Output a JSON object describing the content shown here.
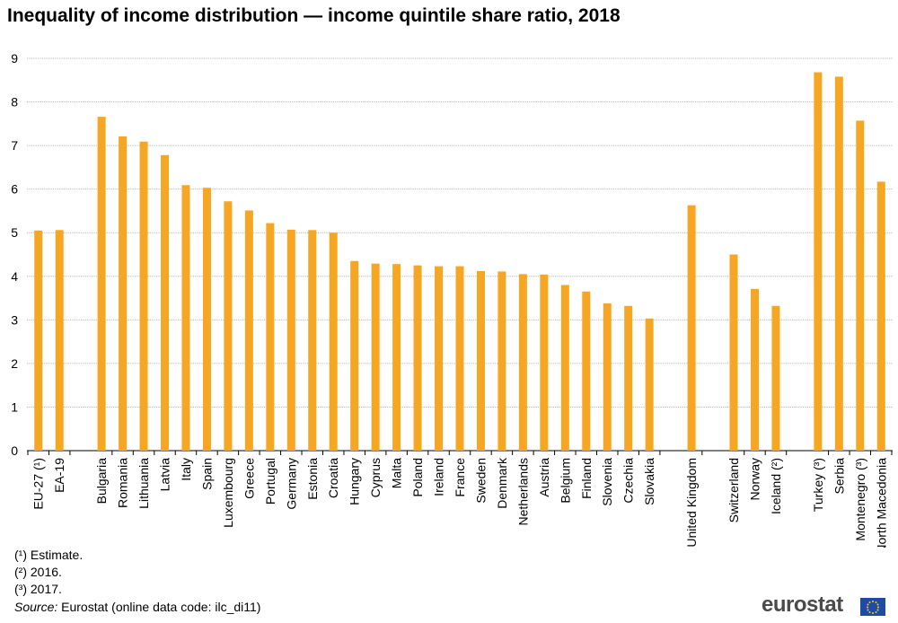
{
  "title": "Inequality of income distribution — income quintile share ratio, 2018",
  "chart_data": {
    "type": "bar",
    "title": "Inequality of income distribution — income quintile share ratio, 2018",
    "xlabel": "",
    "ylabel": "",
    "ylim": [
      0,
      9
    ],
    "yticks": [
      "0",
      "1",
      "2",
      "3",
      "4",
      "5",
      "6",
      "7",
      "8",
      "9"
    ],
    "grid": true,
    "bar_color": "#f5a623",
    "groups": [
      [
        {
          "label": "EU-27 (¹)",
          "value": 5.05
        },
        {
          "label": "EA-19",
          "value": 5.06
        }
      ],
      [
        {
          "label": "Bulgaria",
          "value": 7.66
        },
        {
          "label": "Romania",
          "value": 7.21
        },
        {
          "label": "Lithuania",
          "value": 7.09
        },
        {
          "label": "Latvia",
          "value": 6.78
        },
        {
          "label": "Italy",
          "value": 6.09
        },
        {
          "label": "Spain",
          "value": 6.03
        },
        {
          "label": "Luxembourg",
          "value": 5.72
        },
        {
          "label": "Greece",
          "value": 5.51
        },
        {
          "label": "Portugal",
          "value": 5.22
        },
        {
          "label": "Germany",
          "value": 5.07
        },
        {
          "label": "Estonia",
          "value": 5.06
        },
        {
          "label": "Croatia",
          "value": 5.0
        },
        {
          "label": "Hungary",
          "value": 4.35
        },
        {
          "label": "Cyprus",
          "value": 4.29
        },
        {
          "label": "Malta",
          "value": 4.28
        },
        {
          "label": "Poland",
          "value": 4.25
        },
        {
          "label": "Ireland",
          "value": 4.23
        },
        {
          "label": "France",
          "value": 4.23
        },
        {
          "label": "Sweden",
          "value": 4.12
        },
        {
          "label": "Denmark",
          "value": 4.11
        },
        {
          "label": "Netherlands",
          "value": 4.05
        },
        {
          "label": "Austria",
          "value": 4.04
        },
        {
          "label": "Belgium",
          "value": 3.8
        },
        {
          "label": "Finland",
          "value": 3.65
        },
        {
          "label": "Slovenia",
          "value": 3.38
        },
        {
          "label": "Czechia",
          "value": 3.32
        },
        {
          "label": "Slovakia",
          "value": 3.03
        }
      ],
      [
        {
          "label": "United Kingdom",
          "value": 5.63
        }
      ],
      [
        {
          "label": "Switzerland",
          "value": 4.5
        },
        {
          "label": "Norway",
          "value": 3.71
        },
        {
          "label": "Iceland (²)",
          "value": 3.32
        }
      ],
      [
        {
          "label": "Turkey (³)",
          "value": 8.68
        },
        {
          "label": "Serbia",
          "value": 8.58
        },
        {
          "label": "Montenegro (³)",
          "value": 7.57
        },
        {
          "label": "North Macedonia",
          "value": 6.17
        }
      ]
    ]
  },
  "notes": [
    "(¹) Estimate.",
    "(²) 2016.",
    "(³) 2017."
  ],
  "source": {
    "label": "Source:",
    "text": " Eurostat (online data code: ilc_di11)"
  },
  "logo": {
    "text": "eurostat"
  }
}
